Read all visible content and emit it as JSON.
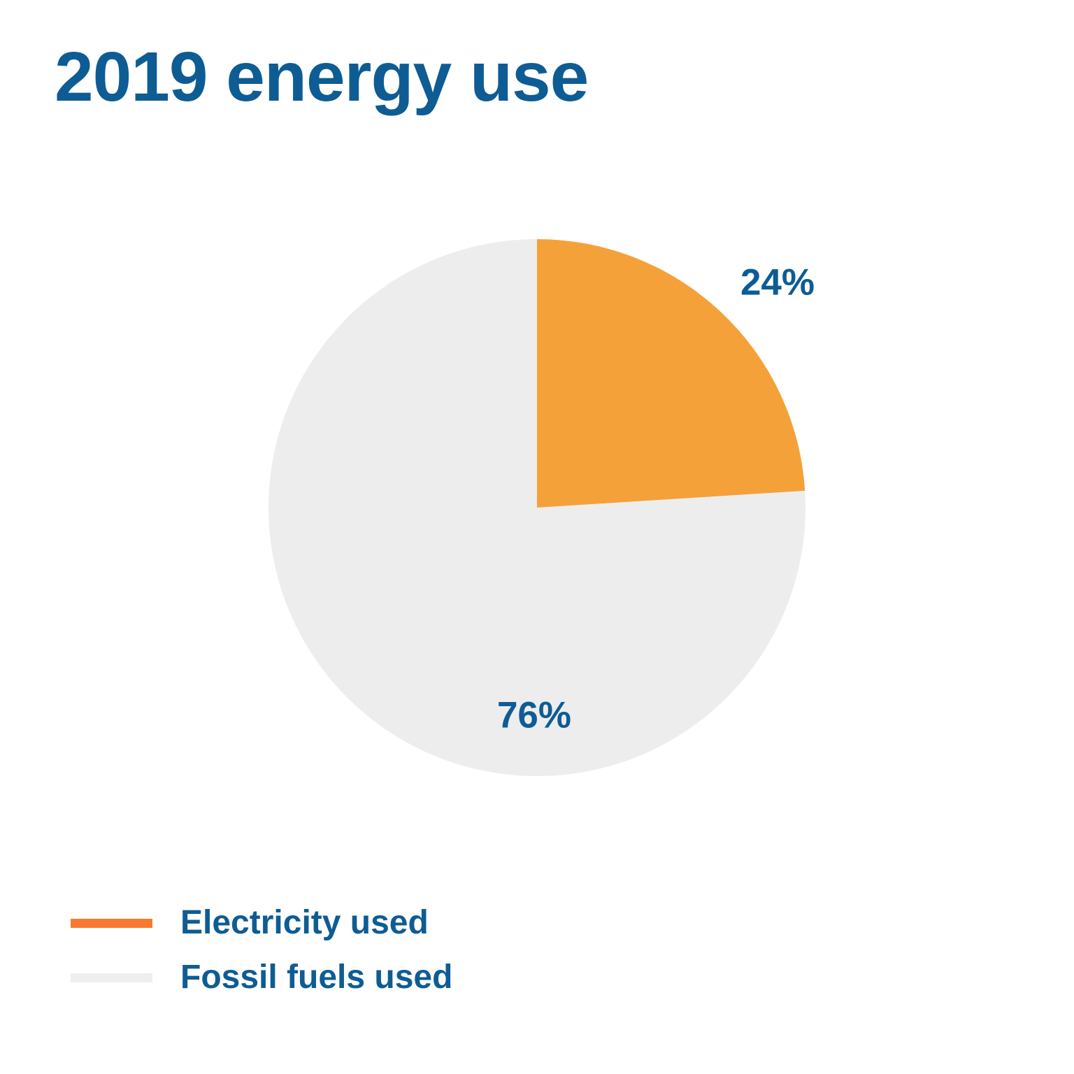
{
  "chart_data": {
    "type": "pie",
    "title": "2019 energy use",
    "categories": [
      "Electricity used",
      "Fossil fuels used"
    ],
    "values": [
      24,
      76
    ],
    "slice_value_labels": [
      "24%",
      "76%"
    ],
    "slice_colors": [
      "#F5A139",
      "#EDEDED"
    ],
    "legend_swatch_colors": [
      "#F8792F",
      "#EFEFEF"
    ],
    "text_color": "#0E5C94",
    "background_color": "#FFFFFF",
    "start_angle_deg": 0,
    "direction": "clockwise",
    "legend_position": "bottom-left",
    "labels_shown": true,
    "grid": "off"
  }
}
